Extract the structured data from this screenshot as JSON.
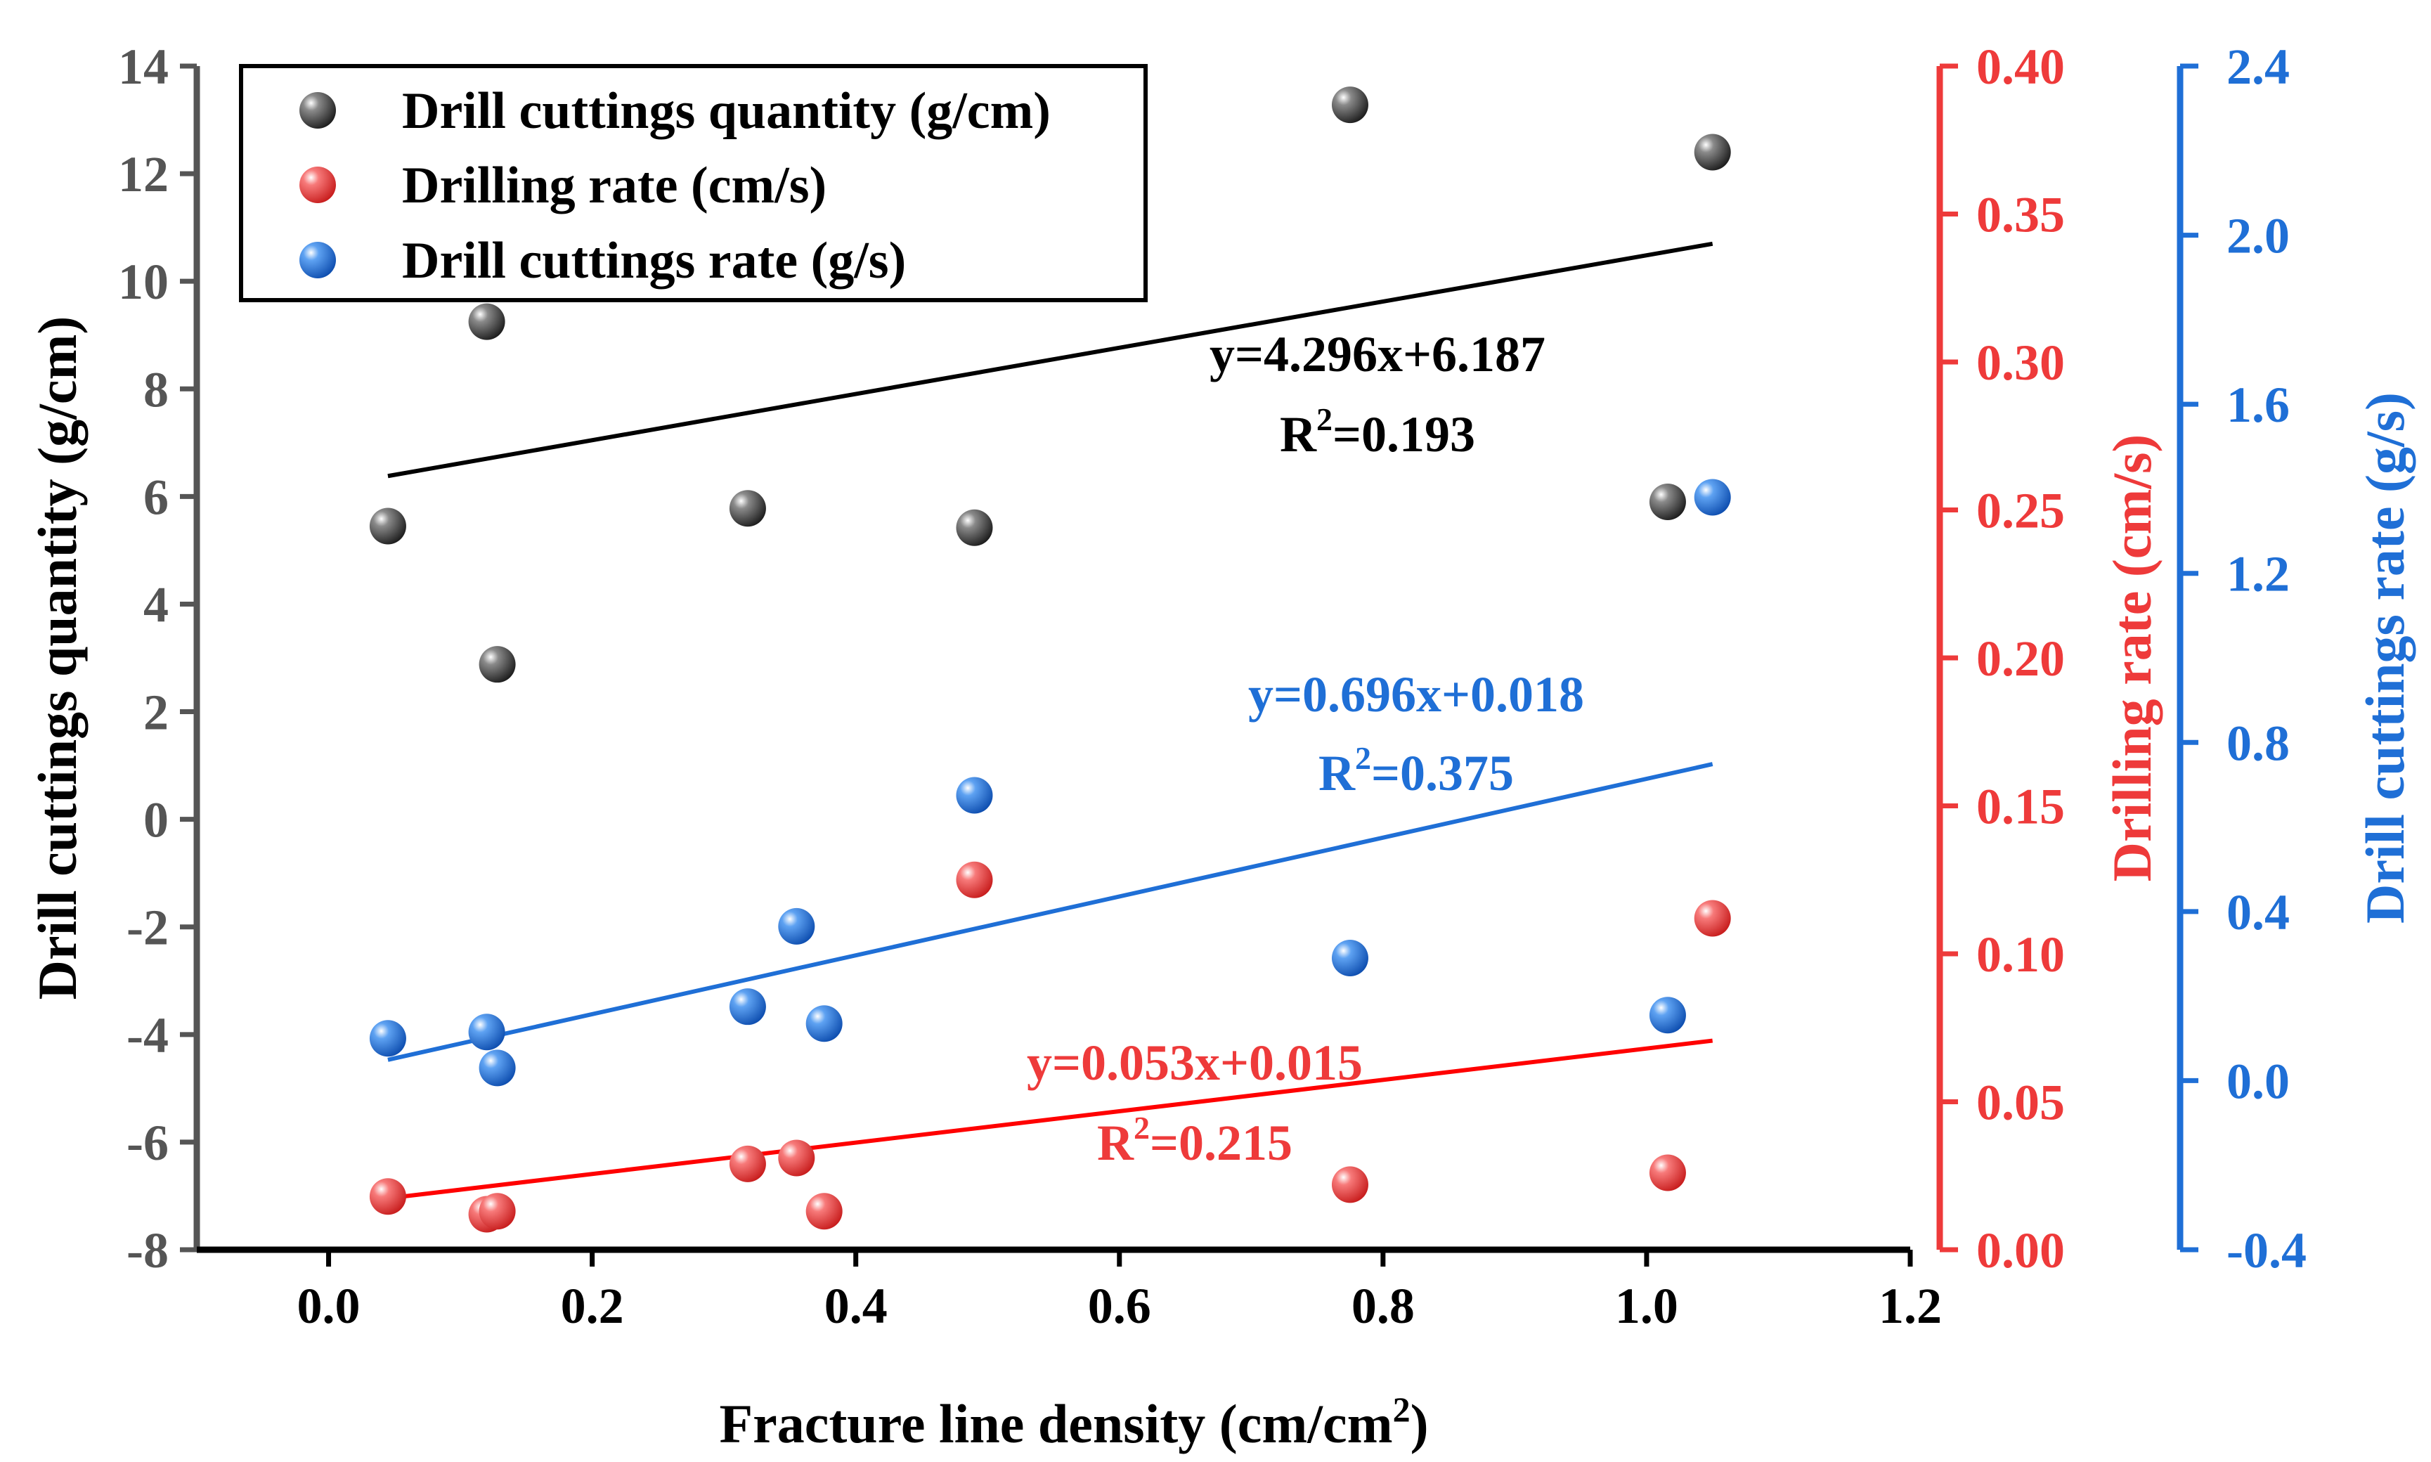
{
  "chart_data": {
    "type": "scatter",
    "xlabel": "Fracture line density (cm/cm",
    "xlabel_sup": "2",
    "xlabel_end": ")",
    "xlim": [
      -0.1,
      1.2
    ],
    "xticks": [
      "0.0",
      "0.2",
      "0.4",
      "0.6",
      "0.8",
      "1.0",
      "1.2"
    ],
    "xtick_values": [
      0.0,
      0.2,
      0.4,
      0.6,
      0.8,
      1.0,
      1.2
    ],
    "axes": {
      "left": {
        "label": "Drill cuttings quantity (g/cm)",
        "lim": [
          -8,
          14
        ],
        "ticks": [
          "-8",
          "-6",
          "-4",
          "-2",
          "0",
          "2",
          "4",
          "6",
          "8",
          "10",
          "12",
          "14"
        ],
        "tick_values": [
          -8,
          -6,
          -4,
          -2,
          0,
          2,
          4,
          6,
          8,
          10,
          12,
          14
        ],
        "color": "#555555"
      },
      "right1": {
        "label": "Drilling rate (cm/s)",
        "lim": [
          0.0,
          0.4
        ],
        "ticks": [
          "0.00",
          "0.05",
          "0.10",
          "0.15",
          "0.20",
          "0.25",
          "0.30",
          "0.35",
          "0.40"
        ],
        "tick_values": [
          0.0,
          0.05,
          0.1,
          0.15,
          0.2,
          0.25,
          0.3,
          0.35,
          0.4
        ],
        "color": "#ee3a3a"
      },
      "right2": {
        "label": "Drill cuttings rate (g/s)",
        "lim": [
          -0.4,
          2.4
        ],
        "ticks": [
          "-0.4",
          "0.0",
          "0.4",
          "0.8",
          "1.2",
          "1.6",
          "2.0",
          "2.4"
        ],
        "tick_values": [
          -0.4,
          0.0,
          0.4,
          0.8,
          1.2,
          1.6,
          2.0,
          2.4
        ],
        "color": "#1f6fd6"
      }
    },
    "series": [
      {
        "name": "Drill cuttings quantity (g/cm)",
        "axis": "left",
        "color": "#3a3a3a",
        "x": [
          0.045,
          0.12,
          0.128,
          0.318,
          0.49,
          0.775,
          1.016,
          1.05
        ],
        "y": [
          5.45,
          9.25,
          2.88,
          5.78,
          5.42,
          13.28,
          5.9,
          12.4
        ],
        "fit": {
          "slope": 4.296,
          "intercept": 6.187,
          "x_range": [
            0.045,
            1.05
          ],
          "equation": "y=4.296x+6.187",
          "r2_label": "R",
          "r2_sup": "2",
          "r2_value": "=0.193"
        }
      },
      {
        "name": "Drilling rate (cm/s)",
        "axis": "right1",
        "color": "#ee3a3a",
        "x": [
          0.045,
          0.12,
          0.128,
          0.318,
          0.355,
          0.376,
          0.49,
          0.775,
          1.016,
          1.05
        ],
        "y": [
          0.018,
          0.012,
          0.013,
          0.029,
          0.031,
          0.013,
          0.125,
          0.022,
          0.026,
          0.112
        ],
        "fit": {
          "slope": 0.053,
          "intercept": 0.015,
          "x_range": [
            0.045,
            1.05
          ],
          "equation": "y=0.053x+0.015",
          "r2_label": "R",
          "r2_sup": "2",
          "r2_value": "=0.215"
        }
      },
      {
        "name": "Drill cuttings rate (g/s)",
        "axis": "right2",
        "color": "#1f6fd6",
        "x": [
          0.045,
          0.12,
          0.128,
          0.318,
          0.355,
          0.376,
          0.49,
          0.775,
          1.016,
          1.05
        ],
        "y": [
          0.1,
          0.115,
          0.03,
          0.175,
          0.365,
          0.135,
          0.675,
          0.29,
          0.155,
          1.38
        ],
        "fit": {
          "slope": 0.696,
          "intercept": 0.018,
          "x_range": [
            0.045,
            1.05
          ],
          "equation": "y=0.696x+0.018",
          "r2_label": "R",
          "r2_sup": "2",
          "r2_value": "=0.375"
        }
      }
    ],
    "legend": {
      "placement": "top-left",
      "entries": [
        "Drill cuttings quantity (g/cm)",
        "Drilling rate (cm/s)",
        "Drill cuttings rate (g/s)"
      ]
    }
  }
}
